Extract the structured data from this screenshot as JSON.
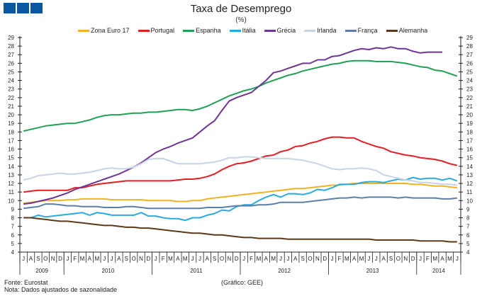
{
  "chart_data": {
    "type": "line",
    "title": "Taxa de Desemprego",
    "subtitle": "(%)",
    "xlabel": "",
    "ylabel": "",
    "ylim": [
      4,
      29
    ],
    "yticks": [
      4,
      5,
      6,
      7,
      8,
      9,
      10,
      11,
      12,
      13,
      14,
      15,
      16,
      17,
      18,
      19,
      20,
      21,
      22,
      23,
      24,
      25,
      26,
      27,
      28,
      29
    ],
    "grid": false,
    "legend": "top",
    "month_labels": [
      "J",
      "A",
      "S",
      "O",
      "N",
      "D",
      "J",
      "F",
      "M",
      "A",
      "M",
      "J",
      "J",
      "A",
      "S",
      "O",
      "N",
      "D",
      "J",
      "F",
      "M",
      "A",
      "M",
      "J",
      "J",
      "A",
      "S",
      "O",
      "N",
      "D",
      "J",
      "F",
      "M",
      "A",
      "M",
      "J",
      "J",
      "A",
      "S",
      "O",
      "N",
      "D",
      "J",
      "F",
      "M",
      "A",
      "M",
      "J",
      "J",
      "A",
      "S",
      "O",
      "N",
      "D",
      "J",
      "F",
      "M",
      "A",
      "M",
      "J"
    ],
    "years": [
      {
        "label": "2009",
        "months": 6
      },
      {
        "label": "2010",
        "months": 12
      },
      {
        "label": "2011",
        "months": 12
      },
      {
        "label": "2012",
        "months": 12
      },
      {
        "label": "2013",
        "months": 12
      },
      {
        "label": "2014",
        "months": 6
      }
    ],
    "series": [
      {
        "name": "Zona Euro 17",
        "color": "#f0b323",
        "values": [
          9.7,
          9.8,
          9.9,
          10.0,
          10.0,
          10.0,
          10.1,
          10.1,
          10.2,
          10.2,
          10.2,
          10.2,
          10.1,
          10.1,
          10.1,
          10.1,
          10.1,
          10.0,
          10.0,
          10.0,
          10.0,
          9.9,
          9.9,
          10.0,
          10.0,
          10.2,
          10.3,
          10.4,
          10.5,
          10.6,
          10.7,
          10.8,
          10.9,
          11.0,
          11.1,
          11.2,
          11.3,
          11.4,
          11.4,
          11.5,
          11.6,
          11.7,
          11.8,
          11.8,
          11.9,
          12.0,
          12.0,
          12.0,
          12.0,
          12.0,
          12.0,
          12.0,
          12.0,
          11.9,
          11.9,
          11.8,
          11.7,
          11.7,
          11.6,
          11.5
        ]
      },
      {
        "name": "Portugal",
        "color": "#e31e24",
        "values": [
          11.0,
          11.1,
          11.2,
          11.2,
          11.2,
          11.2,
          11.2,
          11.5,
          11.5,
          11.7,
          11.9,
          12.0,
          12.1,
          12.2,
          12.3,
          12.3,
          12.3,
          12.3,
          12.3,
          12.3,
          12.3,
          12.4,
          12.5,
          12.5,
          12.6,
          12.8,
          13.1,
          13.6,
          14.0,
          14.3,
          14.4,
          14.6,
          14.9,
          15.2,
          15.3,
          15.7,
          15.9,
          16.3,
          16.4,
          16.7,
          16.9,
          17.2,
          17.4,
          17.4,
          17.3,
          17.3,
          16.9,
          16.6,
          16.3,
          16.1,
          15.7,
          15.5,
          15.3,
          15.2,
          15.0,
          14.9,
          14.8,
          14.6,
          14.3,
          14.1
        ]
      },
      {
        "name": "Espanha",
        "color": "#1fa055",
        "values": [
          18.1,
          18.3,
          18.5,
          18.7,
          18.8,
          18.9,
          19.0,
          19.0,
          19.2,
          19.4,
          19.7,
          19.9,
          20.0,
          20.0,
          20.1,
          20.2,
          20.2,
          20.3,
          20.3,
          20.4,
          20.5,
          20.6,
          20.6,
          20.5,
          20.7,
          21.0,
          21.4,
          21.8,
          22.2,
          22.5,
          22.8,
          23.0,
          23.3,
          23.7,
          24.0,
          24.3,
          24.6,
          24.8,
          25.1,
          25.3,
          25.5,
          25.7,
          25.9,
          26.0,
          26.2,
          26.3,
          26.3,
          26.3,
          26.2,
          26.2,
          26.2,
          26.1,
          26.0,
          25.8,
          25.6,
          25.5,
          25.2,
          25.1,
          24.8,
          24.5
        ]
      },
      {
        "name": "Itália",
        "color": "#2aaae0",
        "values": [
          8.0,
          8.0,
          8.3,
          8.1,
          8.2,
          8.3,
          8.4,
          8.5,
          8.6,
          8.3,
          8.6,
          8.5,
          8.3,
          8.3,
          8.3,
          8.3,
          8.6,
          8.2,
          8.2,
          8.0,
          7.9,
          7.9,
          7.7,
          8.0,
          8.0,
          8.3,
          8.5,
          8.9,
          8.8,
          9.3,
          9.5,
          9.5,
          10.0,
          10.4,
          10.7,
          10.4,
          10.8,
          10.8,
          10.7,
          10.9,
          11.3,
          11.2,
          11.5,
          11.9,
          11.9,
          11.9,
          12.1,
          12.2,
          12.2,
          12.1,
          12.3,
          12.5,
          12.4,
          12.7,
          12.5,
          12.6,
          12.6,
          12.4,
          12.6,
          12.3
        ]
      },
      {
        "name": "Grécia",
        "color": "#6e3596",
        "values": [
          9.6,
          9.7,
          9.9,
          10.1,
          10.3,
          10.6,
          10.9,
          11.3,
          11.6,
          11.9,
          12.2,
          12.5,
          12.8,
          13.1,
          13.5,
          13.9,
          14.4,
          15.0,
          15.6,
          16.0,
          16.3,
          16.7,
          17.0,
          17.3,
          18.0,
          18.7,
          19.3,
          20.5,
          21.6,
          22.0,
          22.3,
          22.6,
          23.3,
          24.0,
          24.9,
          25.1,
          25.4,
          25.7,
          26.0,
          26.0,
          26.4,
          26.4,
          26.8,
          26.9,
          27.2,
          27.5,
          27.7,
          27.6,
          27.8,
          27.7,
          27.9,
          27.7,
          27.7,
          27.4,
          27.2,
          27.3,
          27.3,
          27.3,
          null,
          null
        ]
      },
      {
        "name": "Irlanda",
        "color": "#c8d3e6",
        "values": [
          12.4,
          12.6,
          12.9,
          13.0,
          13.1,
          13.2,
          13.1,
          13.1,
          13.2,
          13.3,
          13.5,
          13.7,
          13.8,
          13.7,
          13.7,
          13.9,
          14.3,
          14.8,
          14.9,
          14.9,
          14.6,
          14.3,
          14.3,
          14.3,
          14.3,
          14.4,
          14.5,
          14.7,
          15.0,
          15.0,
          15.1,
          15.1,
          15.0,
          14.9,
          14.9,
          14.9,
          14.9,
          14.8,
          14.7,
          14.5,
          14.3,
          14.0,
          13.7,
          13.6,
          13.7,
          13.7,
          13.8,
          13.7,
          13.5,
          13.0,
          12.8,
          12.6,
          12.4,
          12.3,
          12.1,
          12.1,
          12.0,
          11.9,
          11.9,
          11.8
        ]
      },
      {
        "name": "França",
        "color": "#5b7fa6",
        "values": [
          9.1,
          9.2,
          9.3,
          9.6,
          9.6,
          9.5,
          9.4,
          9.4,
          9.3,
          9.3,
          9.3,
          9.2,
          9.2,
          9.2,
          9.3,
          9.3,
          9.2,
          9.1,
          9.1,
          9.1,
          9.1,
          9.1,
          9.1,
          9.1,
          9.1,
          9.2,
          9.2,
          9.2,
          9.3,
          9.4,
          9.4,
          9.4,
          9.5,
          9.5,
          9.6,
          9.8,
          9.8,
          9.8,
          9.8,
          9.9,
          10.0,
          10.1,
          10.2,
          10.3,
          10.3,
          10.4,
          10.3,
          10.4,
          10.4,
          10.4,
          10.4,
          10.3,
          10.4,
          10.3,
          10.3,
          10.3,
          10.3,
          10.2,
          10.2,
          10.3
        ]
      },
      {
        "name": "Alemanha",
        "color": "#5a3a1a",
        "values": [
          8.0,
          8.0,
          7.9,
          7.8,
          7.7,
          7.6,
          7.6,
          7.5,
          7.4,
          7.3,
          7.2,
          7.1,
          7.1,
          7.0,
          6.9,
          6.9,
          6.8,
          6.8,
          6.7,
          6.6,
          6.5,
          6.4,
          6.3,
          6.2,
          6.2,
          6.1,
          6.0,
          6.0,
          5.9,
          5.8,
          5.7,
          5.7,
          5.6,
          5.6,
          5.6,
          5.6,
          5.5,
          5.5,
          5.5,
          5.5,
          5.5,
          5.5,
          5.5,
          5.5,
          5.5,
          5.5,
          5.5,
          5.5,
          5.4,
          5.4,
          5.4,
          5.4,
          5.4,
          5.4,
          5.3,
          5.3,
          5.3,
          5.3,
          5.2,
          5.2
        ]
      }
    ]
  },
  "footer": {
    "source": "Fonte: Eurostat",
    "note": "Nota: Dados ajustados de sazonalidade",
    "credit": "(Gráfico: GEE)"
  }
}
